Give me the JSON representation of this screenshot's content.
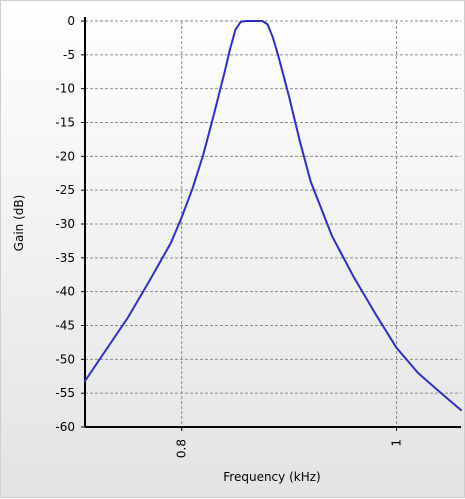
{
  "chart_data": {
    "type": "line",
    "title": "",
    "xlabel": "Frequency (kHz)",
    "ylabel": "Gain (dB)",
    "xlim": [
      0.71,
      1.06
    ],
    "ylim": [
      -60,
      0
    ],
    "x_ticks": [
      {
        "value": 0.8,
        "label": "0.8"
      },
      {
        "value": 1.0,
        "label": "1"
      }
    ],
    "y_ticks": [
      {
        "value": 0,
        "label": "0"
      },
      {
        "value": -5,
        "label": "-5"
      },
      {
        "value": -10,
        "label": "-10"
      },
      {
        "value": -15,
        "label": "-15"
      },
      {
        "value": -20,
        "label": "-20"
      },
      {
        "value": -25,
        "label": "-25"
      },
      {
        "value": -30,
        "label": "-30"
      },
      {
        "value": -35,
        "label": "-35"
      },
      {
        "value": -40,
        "label": "-40"
      },
      {
        "value": -45,
        "label": "-45"
      },
      {
        "value": -50,
        "label": "-50"
      },
      {
        "value": -55,
        "label": "-55"
      },
      {
        "value": -60,
        "label": "-60"
      }
    ],
    "grid": true,
    "series": [
      {
        "color": "#2e2ec8",
        "x": [
          0.71,
          0.73,
          0.75,
          0.77,
          0.79,
          0.8,
          0.81,
          0.82,
          0.83,
          0.84,
          0.845,
          0.85,
          0.855,
          0.86,
          0.87,
          0.875,
          0.88,
          0.885,
          0.89,
          0.9,
          0.91,
          0.92,
          0.94,
          0.96,
          0.98,
          1.0,
          1.02,
          1.04,
          1.06
        ],
        "y": [
          -53.2,
          -48.5,
          -43.8,
          -38.4,
          -32.8,
          -29.0,
          -24.8,
          -19.8,
          -13.8,
          -7.5,
          -4.2,
          -1.3,
          -0.1,
          0.0,
          0.0,
          0.0,
          -0.5,
          -2.5,
          -5.2,
          -11.2,
          -17.8,
          -23.7,
          -31.8,
          -37.8,
          -43.2,
          -48.3,
          -52.0,
          -54.8,
          -57.5
        ]
      }
    ]
  }
}
